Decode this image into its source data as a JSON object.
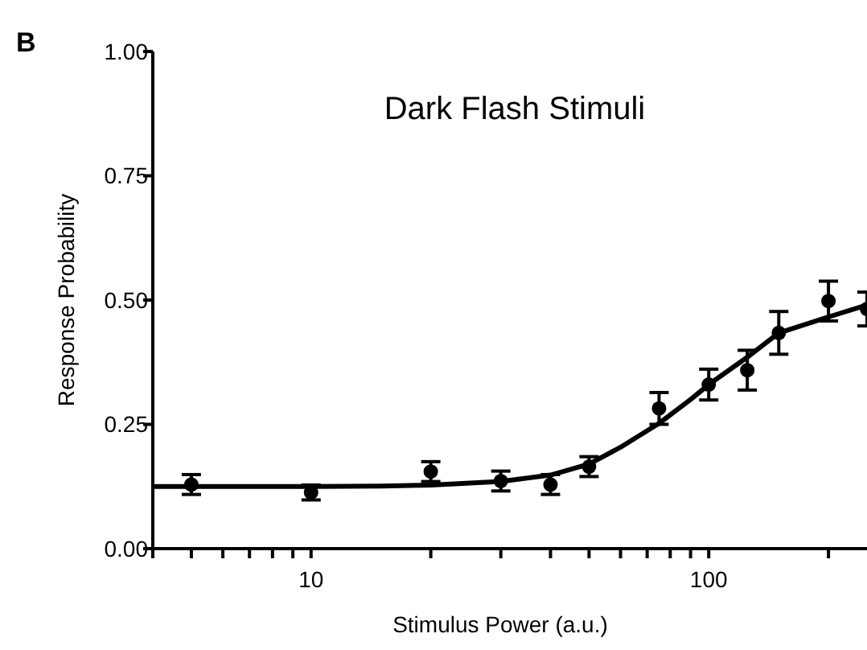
{
  "chart_data": {
    "type": "scatter",
    "title": "Dark Flash Stimuli",
    "xlabel": "Stimulus Power (a.u.)",
    "ylabel": "Response Probability",
    "annotations": [
      "B"
    ],
    "log": "x",
    "grid": false,
    "xlim": [
      4,
      250
    ],
    "ylim": [
      0,
      1
    ],
    "xticks": [
      {
        "value": 4,
        "label": null
      },
      {
        "value": 5,
        "label": null
      },
      {
        "value": 6,
        "label": null
      },
      {
        "value": 7,
        "label": null
      },
      {
        "value": 8,
        "label": null
      },
      {
        "value": 9,
        "label": null
      },
      10,
      {
        "value": 20,
        "label": null
      },
      {
        "value": 30,
        "label": null
      },
      {
        "value": 40,
        "label": null
      },
      {
        "value": 50,
        "label": null
      },
      {
        "value": 60,
        "label": null
      },
      {
        "value": 70,
        "label": null
      },
      {
        "value": 80,
        "label": null
      },
      {
        "value": 90,
        "label": null
      },
      100,
      {
        "value": 200,
        "label": null
      }
    ],
    "yticks": [
      {
        "value": 0,
        "label": "0.00"
      },
      {
        "value": 0.25,
        "label": "0.25"
      },
      {
        "value": 0.5,
        "label": "0.50"
      },
      {
        "value": 0.75,
        "label": "0.75"
      },
      {
        "value": 1,
        "label": "1.00"
      }
    ],
    "series": [
      {
        "color": "#000000",
        "marker": "circle",
        "x": [
          5,
          10,
          20,
          30,
          40,
          50,
          75,
          100,
          125,
          150,
          200,
          250
        ],
        "values": [
          0.129,
          0.113,
          0.155,
          0.136,
          0.129,
          0.165,
          0.282,
          0.33,
          0.359,
          0.434,
          0.498,
          0.482
        ],
        "errors": [
          0.02,
          0.015,
          0.02,
          0.02,
          0.02,
          0.02,
          0.032,
          0.031,
          0.04,
          0.043,
          0.04,
          0.034
        ]
      },
      {
        "type": "line",
        "color": "#000000",
        "line_style": "solid",
        "x": [
          4,
          5,
          7,
          10,
          15,
          20,
          30,
          40,
          50,
          60,
          75,
          90,
          100,
          125,
          150,
          200,
          250
        ],
        "values": [
          0.125,
          0.125,
          0.125,
          0.125,
          0.126,
          0.128,
          0.135,
          0.148,
          0.17,
          0.204,
          0.252,
          0.3,
          0.33,
          0.385,
          0.434,
          0.466,
          0.49
        ]
      }
    ]
  }
}
